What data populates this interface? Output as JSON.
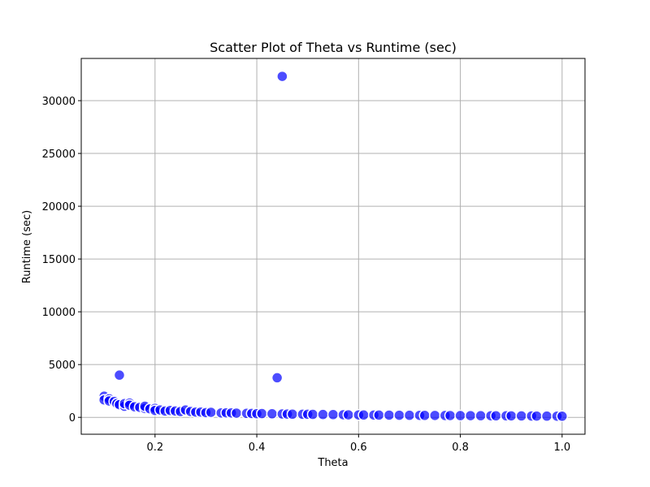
{
  "chart_data": {
    "type": "scatter",
    "title": "Scatter Plot of Theta vs Runtime (sec)",
    "xlabel": "Theta",
    "ylabel": "Runtime (sec)",
    "xlim": [
      0.055,
      1.045
    ],
    "ylim": [
      -1600,
      34000
    ],
    "xticks": [
      0.2,
      0.4,
      0.6,
      0.8,
      1.0
    ],
    "xtick_labels": [
      "0.2",
      "0.4",
      "0.6",
      "0.8",
      "1.0"
    ],
    "yticks": [
      0,
      5000,
      10000,
      15000,
      20000,
      25000,
      30000
    ],
    "ytick_labels": [
      "0",
      "5000",
      "10000",
      "15000",
      "20000",
      "25000",
      "30000"
    ],
    "grid": true,
    "marker_color": "#0000ff",
    "marker_edge_color": "#ffffff",
    "series": [
      {
        "x": [
          0.1,
          0.1,
          0.11,
          0.11,
          0.12,
          0.125,
          0.13,
          0.13,
          0.14,
          0.14,
          0.15,
          0.15,
          0.16,
          0.17,
          0.18,
          0.18,
          0.19,
          0.2,
          0.2,
          0.21,
          0.22,
          0.23,
          0.24,
          0.25,
          0.26,
          0.27,
          0.28,
          0.29,
          0.3,
          0.31,
          0.33,
          0.34,
          0.35,
          0.36,
          0.38,
          0.39,
          0.4,
          0.41,
          0.43,
          0.44,
          0.45,
          0.45,
          0.46,
          0.47,
          0.49,
          0.5,
          0.51,
          0.53,
          0.55,
          0.57,
          0.58,
          0.6,
          0.61,
          0.63,
          0.64,
          0.66,
          0.68,
          0.7,
          0.72,
          0.73,
          0.75,
          0.77,
          0.78,
          0.8,
          0.82,
          0.84,
          0.86,
          0.87,
          0.89,
          0.9,
          0.92,
          0.94,
          0.95,
          0.97,
          0.99,
          1.0
        ],
        "y": [
          2000,
          1650,
          1750,
          1550,
          1500,
          1300,
          4000,
          1200,
          1050,
          1300,
          1350,
          1150,
          1000,
          950,
          850,
          1050,
          800,
          850,
          650,
          700,
          600,
          650,
          600,
          550,
          700,
          550,
          500,
          500,
          450,
          480,
          420,
          430,
          420,
          400,
          380,
          370,
          350,
          360,
          340,
          3750,
          32300,
          320,
          310,
          300,
          290,
          290,
          280,
          270,
          260,
          250,
          240,
          230,
          225,
          220,
          215,
          210,
          200,
          195,
          190,
          185,
          180,
          175,
          170,
          165,
          160,
          155,
          150,
          148,
          145,
          140,
          135,
          130,
          125,
          120,
          115,
          110
        ]
      }
    ]
  }
}
